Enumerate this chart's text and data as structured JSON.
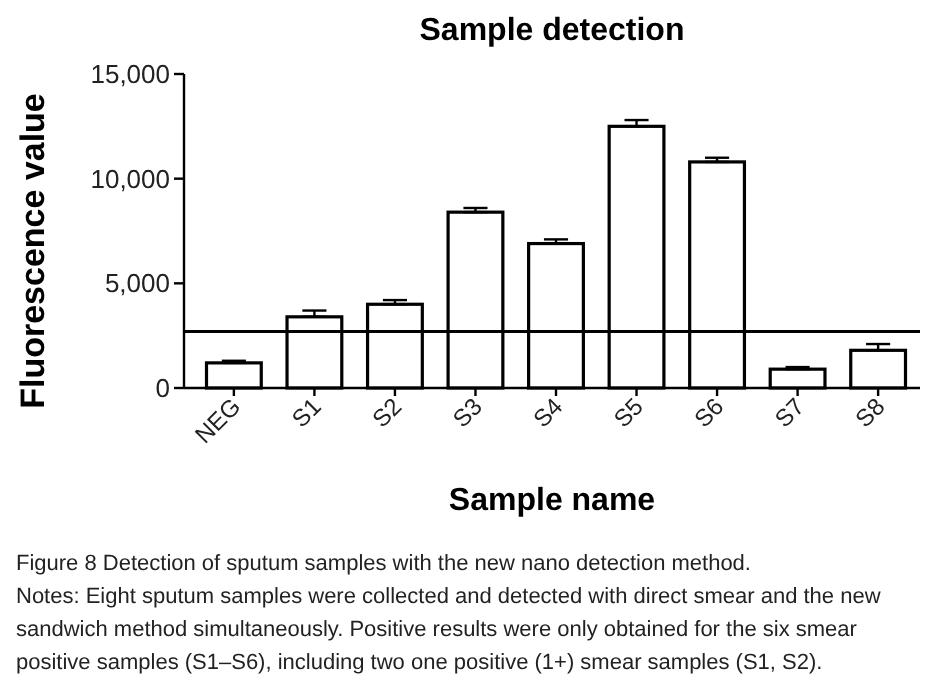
{
  "chart_data": {
    "type": "bar",
    "title": "Sample detection",
    "xlabel": "Sample name",
    "ylabel": "Fluorescence value",
    "categories": [
      "NEG",
      "S1",
      "S2",
      "S3",
      "S4",
      "S5",
      "S6",
      "S7",
      "S8"
    ],
    "values": [
      1200,
      3400,
      4000,
      8400,
      6900,
      12500,
      10800,
      900,
      1800
    ],
    "errors": [
      [
        1200,
        1300
      ],
      [
        3400,
        3700
      ],
      [
        4000,
        4200
      ],
      [
        8400,
        8600
      ],
      [
        6900,
        7100
      ],
      [
        12500,
        12800
      ],
      [
        10800,
        11000
      ],
      [
        900,
        1000
      ],
      [
        1800,
        2100
      ]
    ],
    "color": "#ffffff",
    "ylim": [
      0,
      15000
    ],
    "yticks": [
      {
        "value": 0,
        "label": "0"
      },
      {
        "value": 5000,
        "label": "5,000"
      },
      {
        "value": 10000,
        "label": "10,000"
      },
      {
        "value": 15000,
        "label": "15,000"
      }
    ],
    "ref_lines": [
      {
        "axis": "y",
        "value": 2700,
        "color": "#000000"
      }
    ],
    "annotations": [
      "Figure 8 Detection of sputum samples with the new nano detection method.",
      "Notes: Eight sputum samples were collected and detected with direct smear and the new sandwich method simultaneously. Positive results were only obtained for the six smear positive samples (S1–S6), including two one positive (1+) smear samples (S1, S2)."
    ]
  }
}
